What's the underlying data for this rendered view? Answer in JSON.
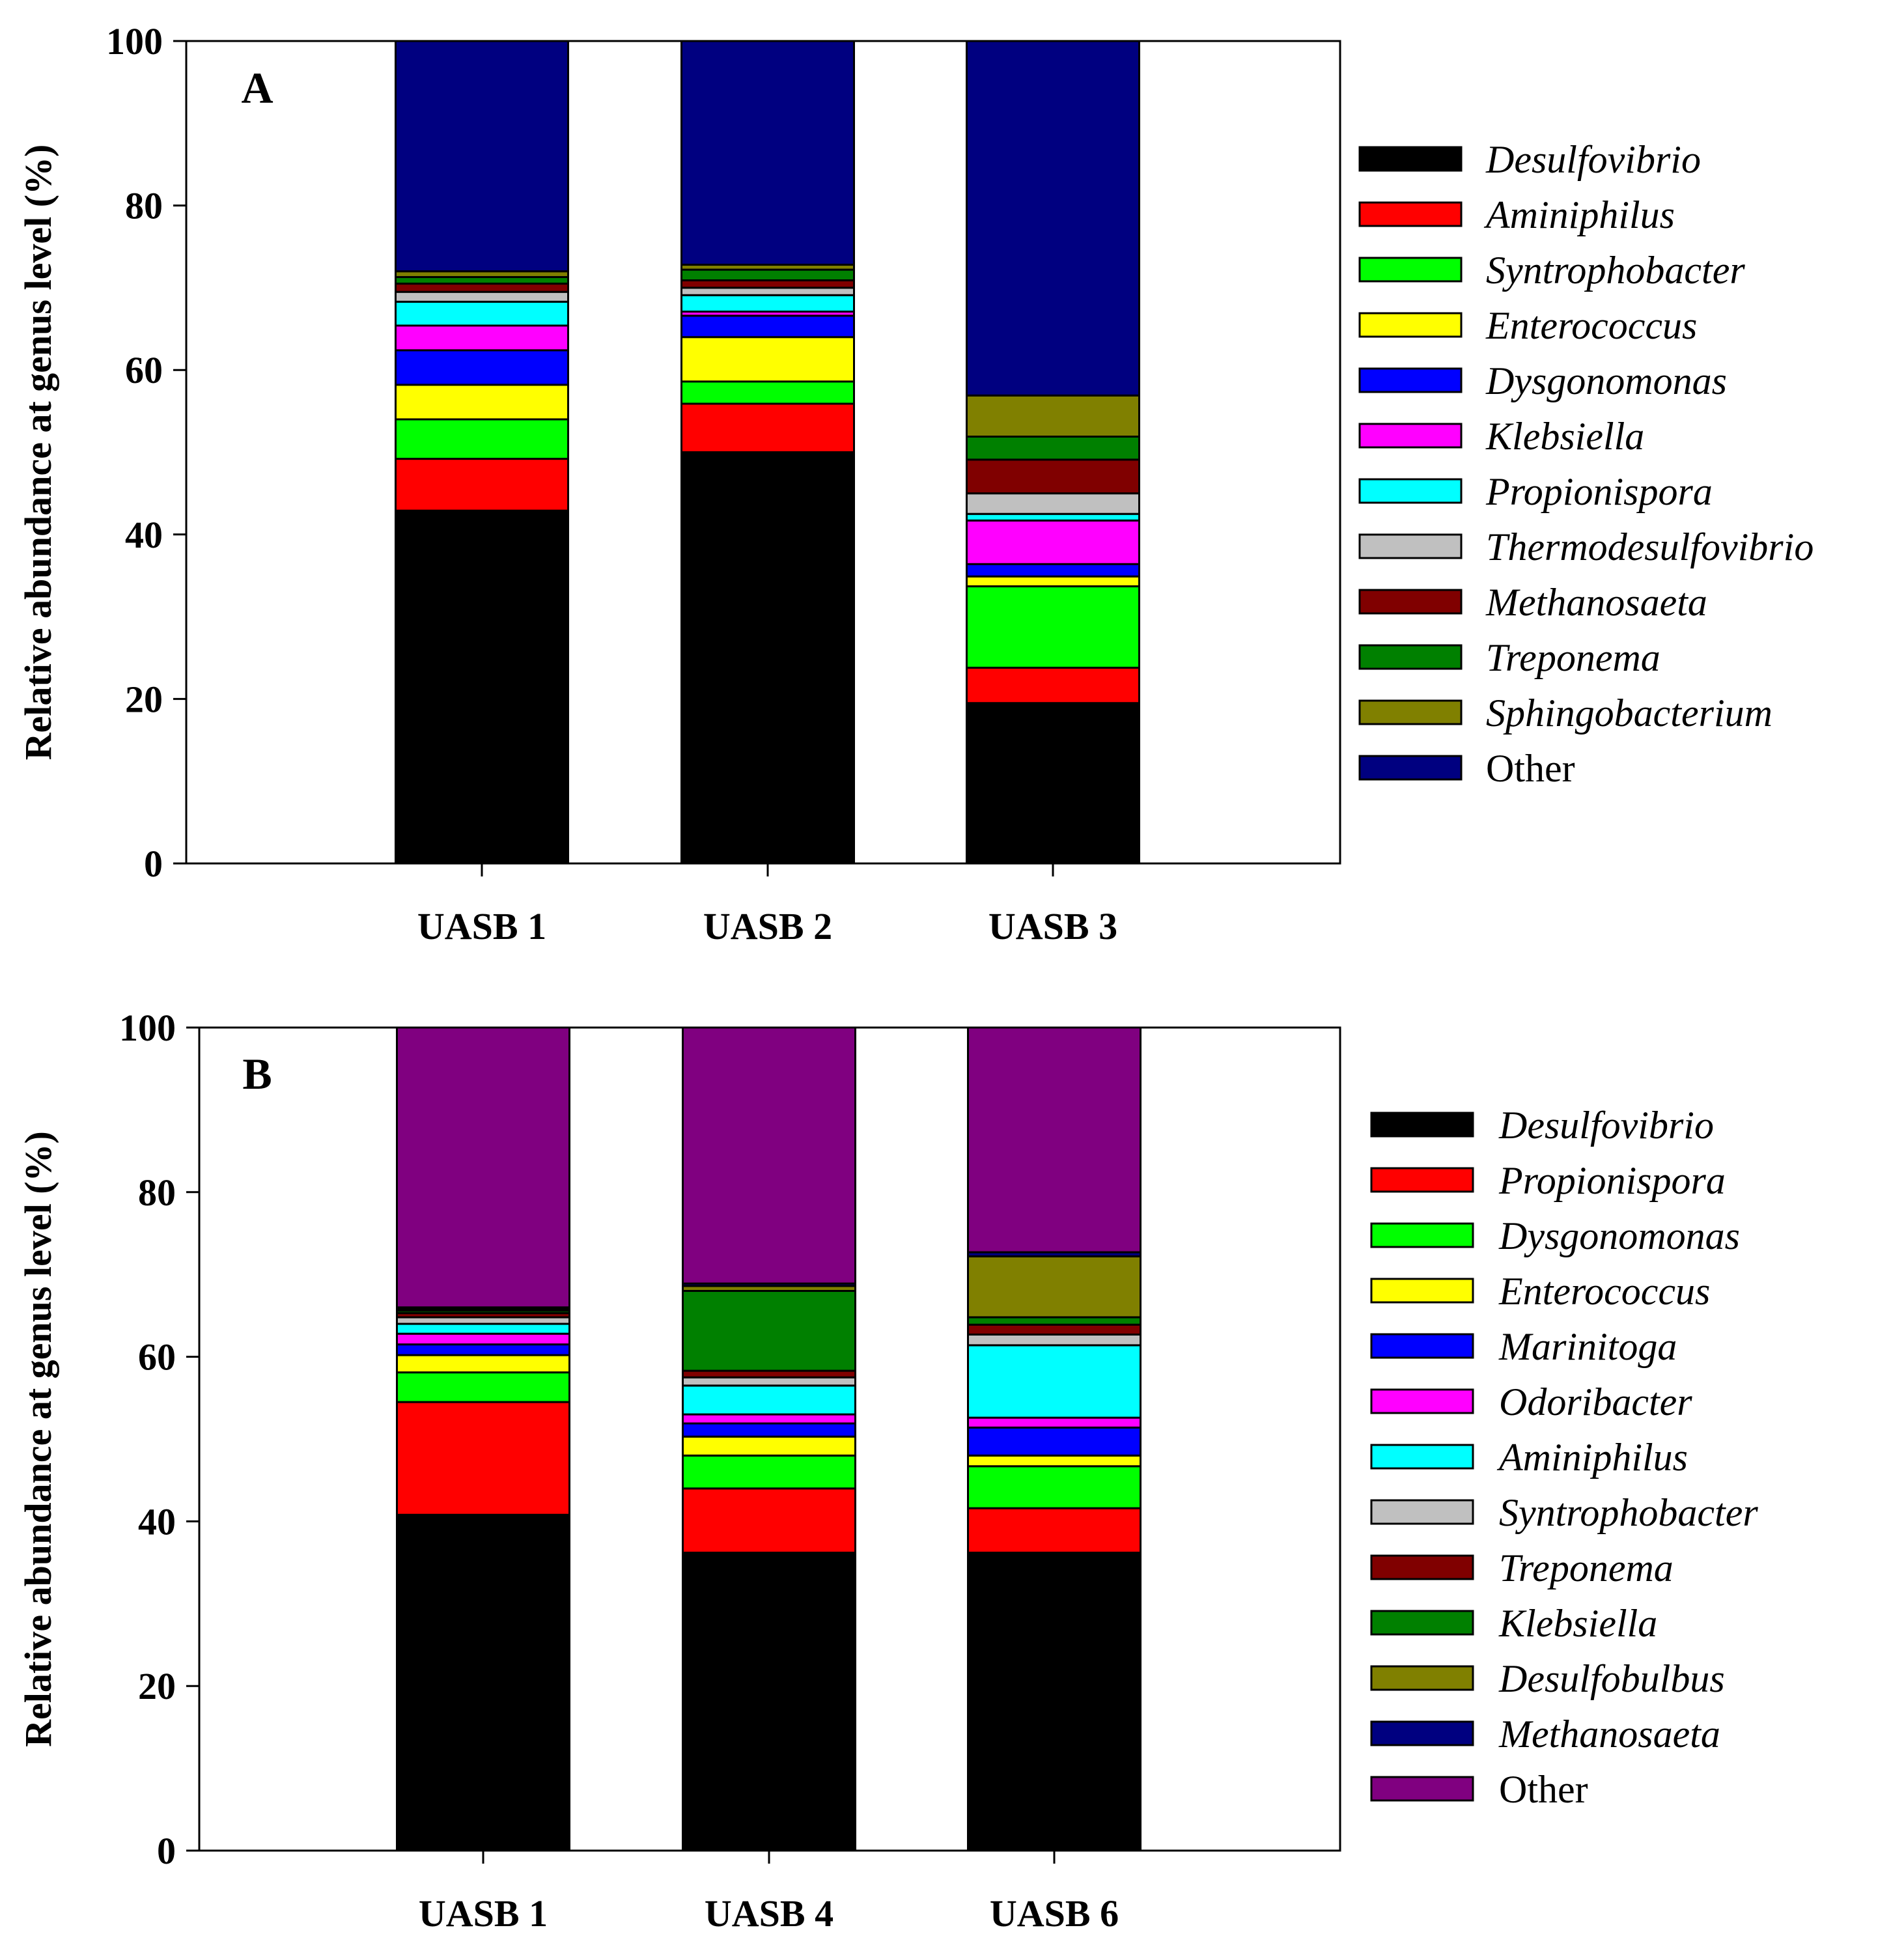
{
  "chart_data": [
    {
      "type": "bar",
      "stacked": true,
      "panel_label": "A",
      "categories": [
        "UASB 1",
        "UASB 2",
        "UASB 3"
      ],
      "xlabel": "",
      "ylabel": "Relative abundance at genus level (%)",
      "ylim": [
        0,
        100
      ],
      "yticks": [
        0,
        20,
        40,
        60,
        80,
        100
      ],
      "grid": false,
      "legend_position": "right",
      "series": [
        {
          "name": "Desulfovibrio",
          "italic": true,
          "color": "#000000",
          "values": [
            42.9,
            50.0,
            19.5
          ]
        },
        {
          "name": "Aminiphilus",
          "italic": true,
          "color": "#ff0000",
          "values": [
            6.3,
            5.9,
            4.3
          ]
        },
        {
          "name": "Syntrophobacter",
          "italic": true,
          "color": "#00ff00",
          "values": [
            4.8,
            2.7,
            9.9
          ]
        },
        {
          "name": "Enterococcus",
          "italic": true,
          "color": "#ffff00",
          "values": [
            4.2,
            5.4,
            1.2
          ]
        },
        {
          "name": "Dysgonomonas",
          "italic": true,
          "color": "#0000ff",
          "values": [
            4.2,
            2.6,
            1.5
          ]
        },
        {
          "name": "Klebsiella",
          "italic": true,
          "color": "#ff00ff",
          "values": [
            3.0,
            0.5,
            5.3
          ]
        },
        {
          "name": "Propionispora",
          "italic": true,
          "color": "#00ffff",
          "values": [
            2.9,
            2.0,
            0.8
          ]
        },
        {
          "name": "Thermodesulfovibrio",
          "italic": true,
          "color": "#c0c0c0",
          "values": [
            1.2,
            0.9,
            2.5
          ]
        },
        {
          "name": "Methanosaeta",
          "italic": true,
          "color": "#800000",
          "values": [
            1.0,
            0.9,
            4.1
          ]
        },
        {
          "name": "Treponema",
          "italic": true,
          "color": "#008000",
          "values": [
            0.8,
            1.3,
            2.8
          ]
        },
        {
          "name": "Sphingobacterium",
          "italic": true,
          "color": "#808000",
          "values": [
            0.7,
            0.6,
            5.0
          ]
        },
        {
          "name": "Other",
          "italic": false,
          "color": "#000080",
          "values": [
            28.0,
            27.2,
            43.1
          ]
        }
      ]
    },
    {
      "type": "bar",
      "stacked": true,
      "panel_label": "B",
      "categories": [
        "UASB 1",
        "UASB 4",
        "UASB 6"
      ],
      "xlabel": "",
      "ylabel": "Relative abundance at genus level (%)",
      "ylim": [
        0,
        100
      ],
      "yticks": [
        0,
        20,
        40,
        60,
        80,
        100
      ],
      "grid": false,
      "legend_position": "right",
      "series": [
        {
          "name": "Desulfovibrio",
          "italic": true,
          "color": "#000000",
          "values": [
            40.8,
            36.2,
            36.2
          ]
        },
        {
          "name": "Propionispora",
          "italic": true,
          "color": "#ff0000",
          "values": [
            13.7,
            7.8,
            5.4
          ]
        },
        {
          "name": "Dysgonomonas",
          "italic": true,
          "color": "#00ff00",
          "values": [
            3.6,
            4.0,
            5.1
          ]
        },
        {
          "name": "Enterococcus",
          "italic": true,
          "color": "#ffff00",
          "values": [
            2.1,
            2.3,
            1.3
          ]
        },
        {
          "name": "Marinitoga",
          "italic": true,
          "color": "#0000ff",
          "values": [
            1.3,
            1.6,
            3.4
          ]
        },
        {
          "name": "Odoribacter",
          "italic": true,
          "color": "#ff00ff",
          "values": [
            1.3,
            1.1,
            1.2
          ]
        },
        {
          "name": "Aminiphilus",
          "italic": true,
          "color": "#00ffff",
          "values": [
            1.2,
            3.5,
            8.8
          ]
        },
        {
          "name": "Syntrophobacter",
          "italic": true,
          "color": "#c0c0c0",
          "values": [
            0.8,
            1.0,
            1.3
          ]
        },
        {
          "name": "Treponema",
          "italic": true,
          "color": "#800000",
          "values": [
            0.5,
            0.8,
            1.2
          ]
        },
        {
          "name": "Klebsiella",
          "italic": true,
          "color": "#008000",
          "values": [
            0.3,
            9.7,
            0.9
          ]
        },
        {
          "name": "Desulfobulbus",
          "italic": true,
          "color": "#808000",
          "values": [
            0.2,
            0.6,
            7.4
          ]
        },
        {
          "name": "Methanosaeta",
          "italic": true,
          "color": "#000080",
          "values": [
            0.2,
            0.3,
            0.5
          ]
        },
        {
          "name": "Other",
          "italic": false,
          "color": "#800080",
          "values": [
            34.0,
            31.1,
            27.3
          ]
        }
      ]
    }
  ]
}
